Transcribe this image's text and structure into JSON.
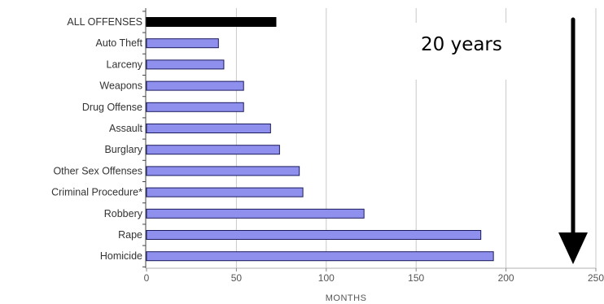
{
  "chart_data": {
    "type": "bar",
    "orientation": "horizontal",
    "categories": [
      "ALL OFFENSES",
      "Auto Theft",
      "Larceny",
      "Weapons",
      "Drug Offense",
      "Assault",
      "Burglary",
      "Other Sex Offenses",
      "Criminal Procedure*",
      "Robbery",
      "Rape",
      "Homicide"
    ],
    "values": [
      72,
      40,
      43,
      54,
      54,
      69,
      74,
      85,
      87,
      121,
      186,
      193
    ],
    "bar_colors": [
      "#000000",
      "#8f8fee",
      "#8f8fee",
      "#8f8fee",
      "#8f8fee",
      "#8f8fee",
      "#8f8fee",
      "#8f8fee",
      "#8f8fee",
      "#8f8fee",
      "#8f8fee",
      "#8f8fee"
    ],
    "bar_border_color": "#1a1a5e",
    "xlabel": "MONTHS",
    "xlim": [
      0,
      250
    ],
    "xticks": [
      "0",
      "50",
      "100",
      "150",
      "200",
      "250"
    ],
    "grid": "vertical",
    "annotation": {
      "text": "20 years",
      "arrow": "down"
    }
  }
}
